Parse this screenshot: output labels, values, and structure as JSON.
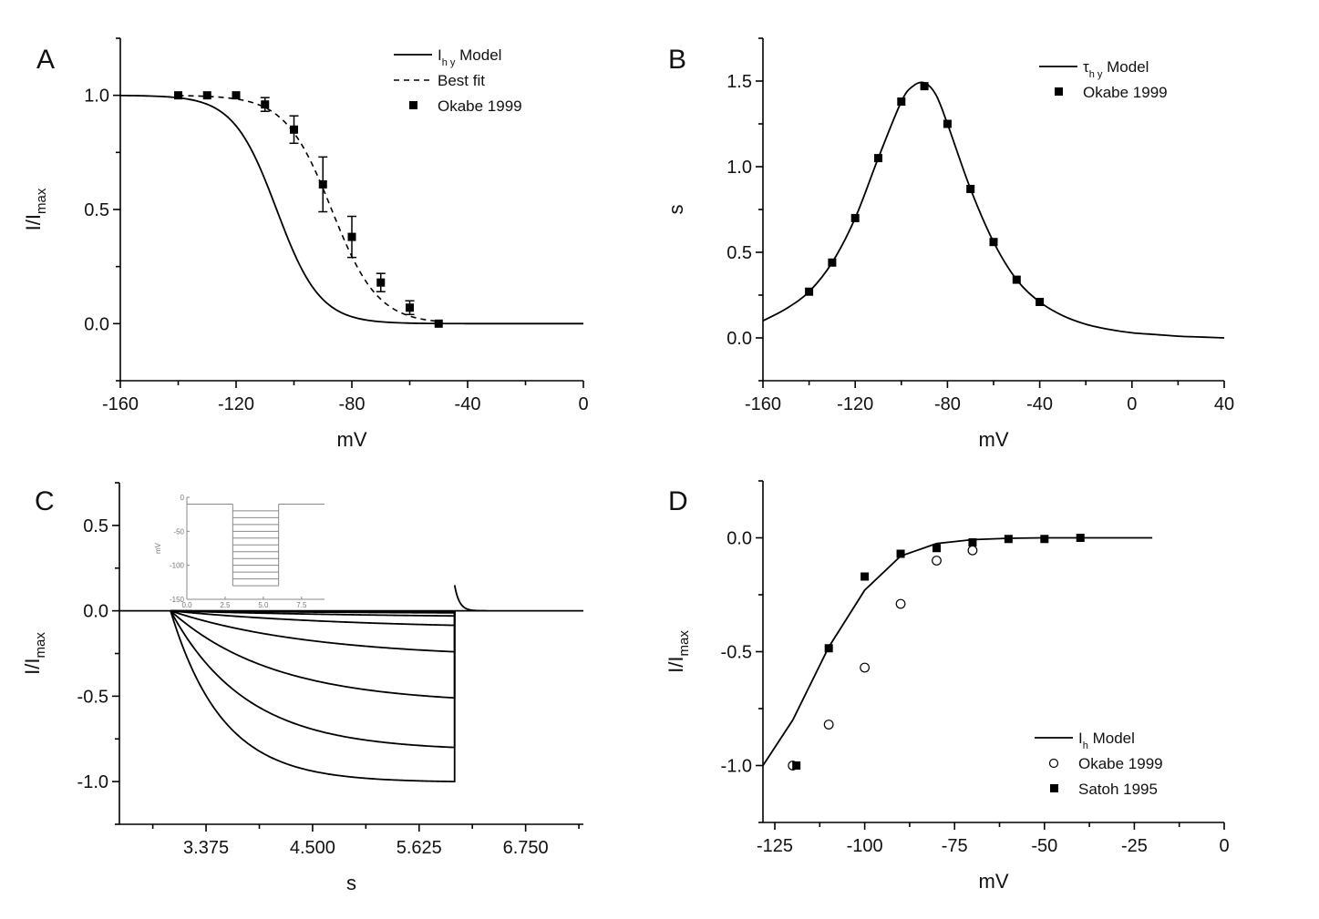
{
  "figure": {
    "panels": [
      "A",
      "B",
      "C",
      "D"
    ]
  },
  "chart_data": [
    {
      "id": "A",
      "type": "line",
      "panel_label": "A",
      "title": "",
      "xlabel": "mV",
      "ylabel_main": "I/I",
      "ylabel_sub": "max",
      "xlim": [
        -160,
        0
      ],
      "ylim": [
        -0.25,
        1.25
      ],
      "xticks": [
        -160,
        -120,
        -80,
        -40,
        0
      ],
      "xtick_labels": [
        "-160",
        "-120",
        "-80",
        "-40",
        "0"
      ],
      "yticks": [
        0.0,
        0.5,
        1.0
      ],
      "ytick_labels": [
        "0.0",
        "0.5",
        "1.0"
      ],
      "legend": {
        "position": "top-right",
        "entries": [
          {
            "label_main": "I",
            "label_sub": "h y",
            "label_rest": " Model",
            "style": "solid"
          },
          {
            "label_main": "Best fit",
            "label_sub": "",
            "label_rest": "",
            "style": "dashed"
          },
          {
            "label_main": "Okabe 1999",
            "label_sub": "",
            "label_rest": "",
            "style": "square"
          }
        ]
      },
      "series": [
        {
          "name": "Ihy Model",
          "style": "solid",
          "kind": "boltzmann",
          "v_half": -106,
          "k": 7.5,
          "x_range": [
            -160,
            0
          ]
        },
        {
          "name": "Best fit",
          "style": "dashed",
          "kind": "boltzmann",
          "v_half": -87,
          "k": 8.0,
          "x_range": [
            -140,
            -50
          ]
        },
        {
          "name": "Okabe 1999",
          "style": "square",
          "x": [
            -140,
            -130,
            -120,
            -110,
            -100,
            -90,
            -80,
            -70,
            -60,
            -50
          ],
          "y": [
            1.0,
            1.0,
            1.0,
            0.96,
            0.85,
            0.61,
            0.38,
            0.18,
            0.07,
            0.0
          ],
          "err": [
            0.0,
            0.0,
            0.0,
            0.03,
            0.06,
            0.12,
            0.09,
            0.04,
            0.03,
            0.0
          ]
        }
      ]
    },
    {
      "id": "B",
      "type": "line",
      "panel_label": "B",
      "title": "",
      "xlabel": "mV",
      "ylabel_main": "s",
      "ylabel_sub": "",
      "xlim": [
        -160,
        40
      ],
      "ylim": [
        -0.25,
        1.75
      ],
      "xticks": [
        -160,
        -120,
        -80,
        -40,
        0,
        40
      ],
      "xtick_labels": [
        "-160",
        "-120",
        "-80",
        "-40",
        "0",
        "40"
      ],
      "yticks": [
        0.0,
        0.5,
        1.0,
        1.5
      ],
      "ytick_labels": [
        "0.0",
        "0.5",
        "1.0",
        "1.5"
      ],
      "legend": {
        "position": "top-right",
        "entries": [
          {
            "label_main": "τ",
            "label_sub": "h y",
            "label_rest": " Model",
            "style": "solid"
          },
          {
            "label_main": "Okabe 1999",
            "label_sub": "",
            "label_rest": "",
            "style": "square"
          }
        ]
      },
      "series": [
        {
          "name": "τhy Model",
          "style": "solid",
          "kind": "bell",
          "x": [
            -160,
            -150,
            -140,
            -130,
            -120,
            -110,
            -100,
            -95,
            -90,
            -85,
            -80,
            -70,
            -60,
            -50,
            -40,
            -30,
            -20,
            -10,
            0,
            10,
            20,
            30,
            40
          ],
          "y": [
            0.1,
            0.17,
            0.27,
            0.44,
            0.7,
            1.05,
            1.38,
            1.47,
            1.49,
            1.42,
            1.25,
            0.87,
            0.56,
            0.34,
            0.21,
            0.13,
            0.08,
            0.05,
            0.03,
            0.02,
            0.01,
            0.005,
            0.0
          ]
        },
        {
          "name": "Okabe 1999",
          "style": "square",
          "x": [
            -140,
            -130,
            -120,
            -110,
            -100,
            -90,
            -80,
            -70,
            -60,
            -50,
            -40
          ],
          "y": [
            0.27,
            0.44,
            0.7,
            1.05,
            1.38,
            1.47,
            1.25,
            0.87,
            0.56,
            0.34,
            0.21
          ]
        }
      ]
    },
    {
      "id": "C",
      "type": "line",
      "panel_label": "C",
      "title": "",
      "xlabel": "s",
      "ylabel_main": "I/I",
      "ylabel_sub": "max",
      "xlim": [
        2.46,
        7.36
      ],
      "ylim": [
        -1.25,
        0.75
      ],
      "xticks": [
        3.375,
        4.5,
        5.625,
        6.75
      ],
      "xtick_labels": [
        "3.375",
        "4.500",
        "5.625",
        "6.750"
      ],
      "yticks": [
        -1.0,
        -0.5,
        0.0,
        0.5
      ],
      "ytick_labels": [
        "-1.0",
        "-0.5",
        "0.0",
        "0.5"
      ],
      "step_on": 3.0,
      "step_off": 6.0,
      "series": [
        {
          "name": "trace-1",
          "final": -1.0,
          "tau": 0.55
        },
        {
          "name": "trace-2",
          "final": -0.8,
          "tau": 0.8
        },
        {
          "name": "trace-3",
          "final": -0.51,
          "tau": 1.1
        },
        {
          "name": "trace-4",
          "final": -0.24,
          "tau": 1.5
        },
        {
          "name": "trace-5",
          "final": -0.085,
          "tau": 2.0
        },
        {
          "name": "trace-6",
          "final": -0.03,
          "tau": 2.5
        },
        {
          "name": "trace-7",
          "final": -0.012,
          "tau": 3.0
        },
        {
          "name": "trace-8",
          "final": -0.004,
          "tau": 3.0
        }
      ],
      "tail_peak": 0.15,
      "inset": {
        "type": "line",
        "xlabel": "",
        "ylabel": "mV",
        "xlim": [
          0,
          9
        ],
        "ylim": [
          -150,
          0
        ],
        "xticks": [
          0,
          2.5,
          5,
          7.5
        ],
        "xtick_labels": [
          "0.0",
          "2.5",
          "5.0",
          "7.5"
        ],
        "yticks": [
          0,
          -50,
          -100,
          -150
        ],
        "ytick_labels": [
          "0",
          "-50",
          "-100",
          "-150"
        ],
        "holding": -10,
        "step_on": 3.0,
        "step_off": 6.0,
        "step_levels": [
          -20,
          -30,
          -40,
          -50,
          -60,
          -70,
          -80,
          -90,
          -100,
          -110,
          -120,
          -130
        ]
      }
    },
    {
      "id": "D",
      "type": "scatter",
      "panel_label": "D",
      "title": "",
      "xlabel": "mV",
      "ylabel_main": "I/I",
      "ylabel_sub": "max",
      "xlim": [
        -128.3,
        0
      ],
      "ylim": [
        -1.25,
        0.25
      ],
      "xticks": [
        -125,
        -100,
        -75,
        -50,
        -25,
        0
      ],
      "xtick_labels": [
        "-125",
        "-100",
        "-75",
        "-50",
        "-25",
        "0"
      ],
      "yticks": [
        -1.0,
        -0.5,
        0.0
      ],
      "ytick_labels": [
        "-1.0",
        "-0.5",
        "0.0"
      ],
      "legend": {
        "position": "bottom-right",
        "entries": [
          {
            "label_main": "I",
            "label_sub": "h",
            "label_rest": " Model",
            "style": "solid"
          },
          {
            "label_main": "Okabe 1999",
            "label_sub": "",
            "label_rest": "",
            "style": "circle"
          },
          {
            "label_main": "Satoh 1995",
            "label_sub": "",
            "label_rest": "",
            "style": "square"
          }
        ]
      },
      "series": [
        {
          "name": "Ih Model",
          "style": "solid",
          "x": [
            -128.3,
            -120,
            -110,
            -100,
            -90,
            -80,
            -70,
            -60,
            -50,
            -40,
            -30,
            -20
          ],
          "y": [
            -1.0,
            -0.8,
            -0.48,
            -0.23,
            -0.08,
            -0.025,
            -0.008,
            -0.002,
            0.0,
            0.0,
            0.0,
            0.0
          ]
        },
        {
          "name": "Okabe 1999",
          "style": "circle",
          "x": [
            -120,
            -110,
            -100,
            -90,
            -80,
            -70
          ],
          "y": [
            -1.0,
            -0.82,
            -0.57,
            -0.29,
            -0.1,
            -0.055
          ]
        },
        {
          "name": "Satoh 1995",
          "style": "square",
          "x": [
            -119,
            -110,
            -100,
            -90,
            -80,
            -70,
            -60,
            -50,
            -40
          ],
          "y": [
            -1.0,
            -0.485,
            -0.17,
            -0.07,
            -0.045,
            -0.02,
            -0.005,
            -0.005,
            0.0
          ]
        }
      ]
    }
  ]
}
